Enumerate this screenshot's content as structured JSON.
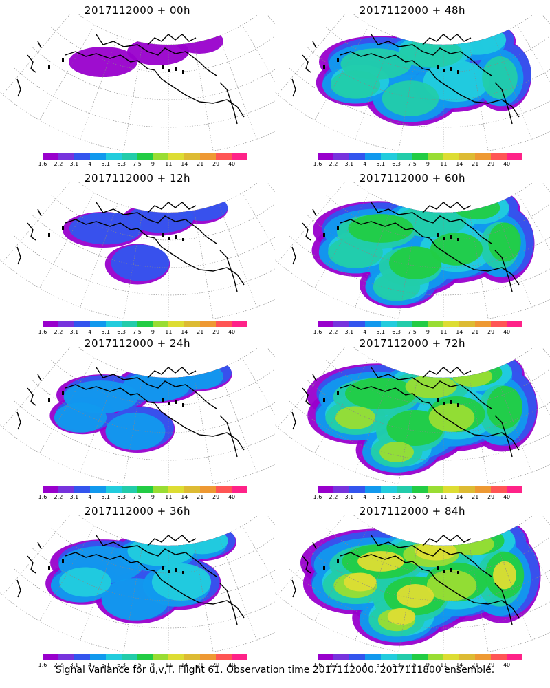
{
  "colorbar": {
    "labels": [
      "1.6",
      "2.2",
      "3.1",
      "4",
      "5.1",
      "6.3",
      "7.5",
      "9",
      "11",
      "14",
      "21",
      "29",
      "40"
    ],
    "colors": [
      "#9900cc",
      "#7733dd",
      "#3355ee",
      "#1199ee",
      "#22ccdd",
      "#22ccaa",
      "#22cc44",
      "#99dd33",
      "#dddd33",
      "#ddbb33",
      "#ee9933",
      "#ff5555",
      "#ff2288"
    ]
  },
  "panels": [
    {
      "title": "2017112000 + 00h",
      "level": 0
    },
    {
      "title": "2017112000 + 48h",
      "level": 4
    },
    {
      "title": "2017112000 + 12h",
      "level": 1
    },
    {
      "title": "2017112000 + 60h",
      "level": 5
    },
    {
      "title": "2017112000 + 24h",
      "level": 2
    },
    {
      "title": "2017112000 + 72h",
      "level": 6
    },
    {
      "title": "2017112000 + 36h",
      "level": 3
    },
    {
      "title": "2017112000 + 84h",
      "level": 7
    }
  ],
  "footer": "Signal Variance for u,v,T. Flight 61. Observation time 2017112000. 2017111800 ensemble."
}
